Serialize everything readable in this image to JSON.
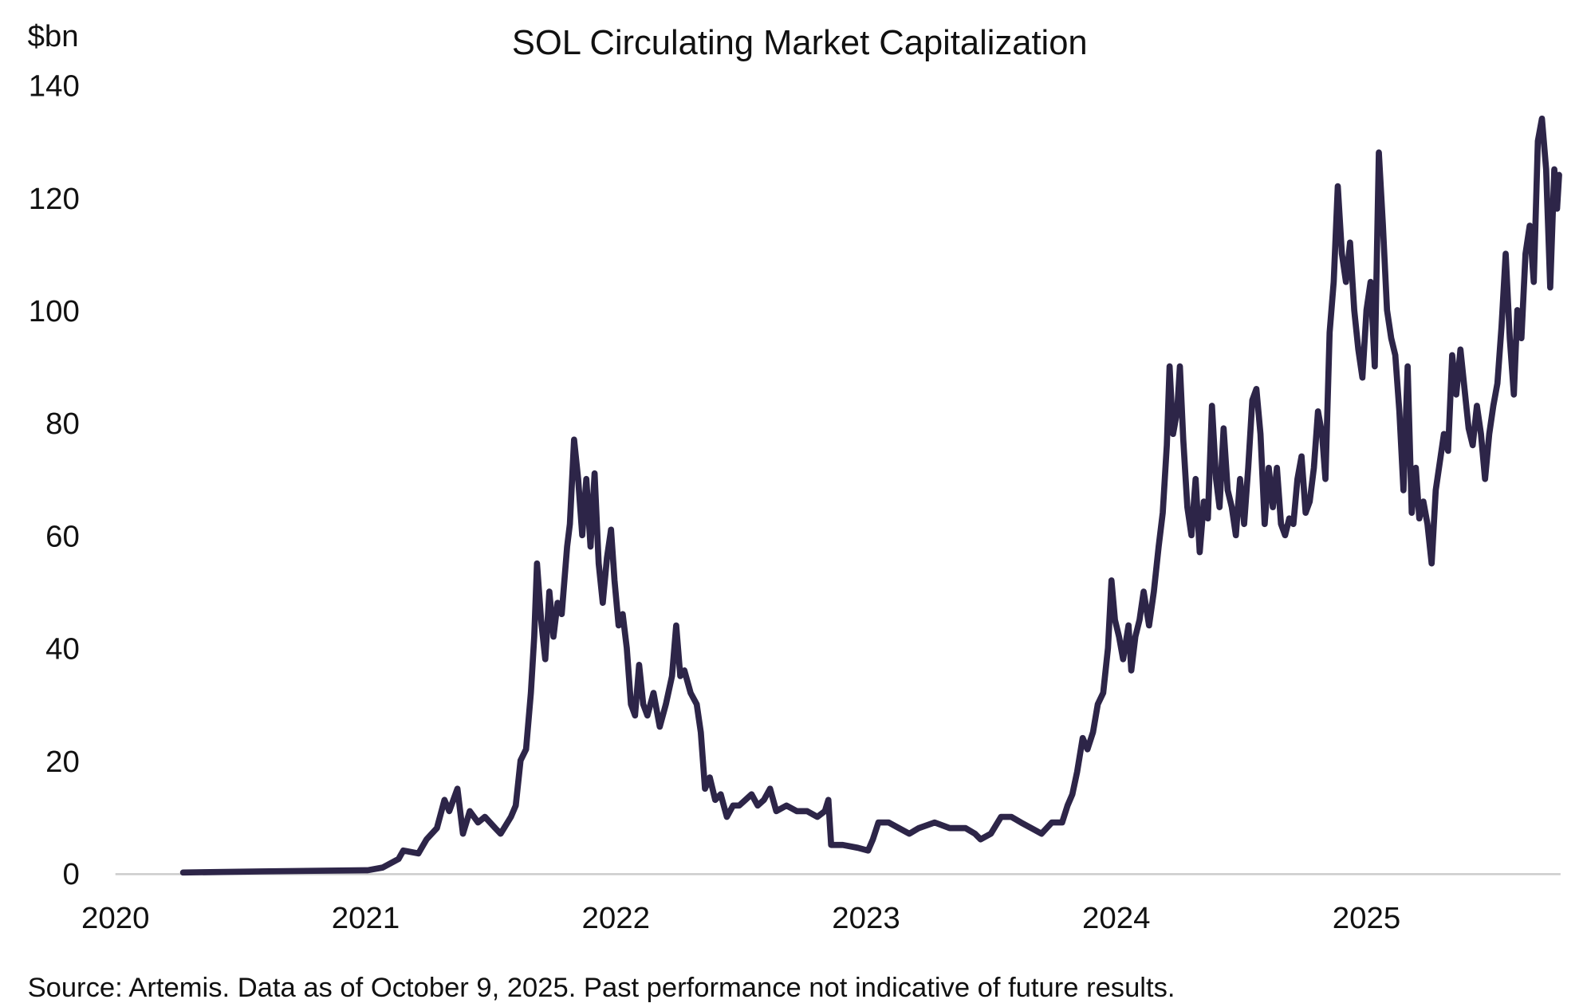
{
  "chart_data": {
    "type": "line",
    "title": "SOL Circulating Market Capitalization",
    "ylabel": "$bn",
    "xlabel": "",
    "ylim": [
      0,
      140
    ],
    "xlim": [
      "2020-01-01",
      "2025-10-09"
    ],
    "yticks": [
      "0",
      "20",
      "40",
      "60",
      "80",
      "100",
      "120",
      "140"
    ],
    "xticks": [
      "2020",
      "2021",
      "2022",
      "2023",
      "2024",
      "2025"
    ],
    "grid": false,
    "line_color": "#2d2548",
    "axis_color": "#cccccc",
    "source": "Source: Artemis. Data as of October 9, 2025. Past performance not indicative of future results.",
    "series": [
      {
        "points": [
          [
            "2020-04-09",
            0.1
          ],
          [
            "2020-08-01",
            0.3
          ],
          [
            "2020-12-31",
            0.5
          ],
          [
            "2021-01-04",
            0.5
          ],
          [
            "2021-01-26",
            1
          ],
          [
            "2021-02-18",
            2.5
          ],
          [
            "2021-02-25",
            4
          ],
          [
            "2021-03-19",
            3.5
          ],
          [
            "2021-03-31",
            6
          ],
          [
            "2021-04-15",
            8
          ],
          [
            "2021-04-26",
            13
          ],
          [
            "2021-05-03",
            11
          ],
          [
            "2021-05-15",
            15
          ],
          [
            "2021-05-23",
            7
          ],
          [
            "2021-06-02",
            11
          ],
          [
            "2021-06-14",
            9
          ],
          [
            "2021-06-24",
            10
          ],
          [
            "2021-07-09",
            8
          ],
          [
            "2021-07-17",
            7
          ],
          [
            "2021-08-01",
            10
          ],
          [
            "2021-08-08",
            12
          ],
          [
            "2021-08-15",
            20
          ],
          [
            "2021-08-23",
            22
          ],
          [
            "2021-08-30",
            32
          ],
          [
            "2021-09-04",
            42
          ],
          [
            "2021-09-08",
            55
          ],
          [
            "2021-09-14",
            45
          ],
          [
            "2021-09-20",
            38
          ],
          [
            "2021-09-26",
            50
          ],
          [
            "2021-10-02",
            42
          ],
          [
            "2021-10-08",
            48
          ],
          [
            "2021-10-14",
            46
          ],
          [
            "2021-10-22",
            58
          ],
          [
            "2021-10-26",
            62
          ],
          [
            "2021-11-01",
            77
          ],
          [
            "2021-11-07",
            70
          ],
          [
            "2021-11-13",
            60
          ],
          [
            "2021-11-19",
            70
          ],
          [
            "2021-11-25",
            58
          ],
          [
            "2021-12-01",
            71
          ],
          [
            "2021-12-07",
            55
          ],
          [
            "2021-12-13",
            48
          ],
          [
            "2021-12-19",
            56
          ],
          [
            "2021-12-25",
            61
          ],
          [
            "2021-12-30",
            52
          ],
          [
            "2022-01-05",
            44
          ],
          [
            "2022-01-11",
            46
          ],
          [
            "2022-01-17",
            40
          ],
          [
            "2022-01-23",
            30
          ],
          [
            "2022-01-29",
            28
          ],
          [
            "2022-02-04",
            37
          ],
          [
            "2022-02-10",
            30
          ],
          [
            "2022-02-16",
            28
          ],
          [
            "2022-02-25",
            32
          ],
          [
            "2022-03-06",
            26
          ],
          [
            "2022-03-15",
            30
          ],
          [
            "2022-03-24",
            35
          ],
          [
            "2022-03-30",
            44
          ],
          [
            "2022-04-05",
            35
          ],
          [
            "2022-04-11",
            36
          ],
          [
            "2022-04-20",
            32
          ],
          [
            "2022-04-29",
            30
          ],
          [
            "2022-05-05",
            25
          ],
          [
            "2022-05-11",
            15
          ],
          [
            "2022-05-18",
            17
          ],
          [
            "2022-05-26",
            13
          ],
          [
            "2022-06-03",
            14
          ],
          [
            "2022-06-12",
            10
          ],
          [
            "2022-06-21",
            12
          ],
          [
            "2022-06-30",
            12
          ],
          [
            "2022-07-09",
            13
          ],
          [
            "2022-07-18",
            14
          ],
          [
            "2022-07-27",
            12
          ],
          [
            "2022-08-05",
            13
          ],
          [
            "2022-08-14",
            15
          ],
          [
            "2022-08-23",
            11
          ],
          [
            "2022-09-07",
            12
          ],
          [
            "2022-09-22",
            11
          ],
          [
            "2022-10-07",
            11
          ],
          [
            "2022-10-22",
            10
          ],
          [
            "2022-11-02",
            11
          ],
          [
            "2022-11-07",
            13
          ],
          [
            "2022-11-11",
            5
          ],
          [
            "2022-11-28",
            5
          ],
          [
            "2022-12-20",
            4.5
          ],
          [
            "2023-01-04",
            4
          ],
          [
            "2023-01-11",
            6
          ],
          [
            "2023-01-19",
            9
          ],
          [
            "2023-02-03",
            9
          ],
          [
            "2023-02-18",
            8
          ],
          [
            "2023-03-05",
            7
          ],
          [
            "2023-03-19",
            8
          ],
          [
            "2023-04-11",
            9
          ],
          [
            "2023-05-03",
            8
          ],
          [
            "2023-05-26",
            8
          ],
          [
            "2023-06-09",
            7
          ],
          [
            "2023-06-17",
            6
          ],
          [
            "2023-07-02",
            7
          ],
          [
            "2023-07-17",
            10
          ],
          [
            "2023-08-01",
            10
          ],
          [
            "2023-08-15",
            9
          ],
          [
            "2023-08-30",
            8
          ],
          [
            "2023-09-14",
            7
          ],
          [
            "2023-09-29",
            9
          ],
          [
            "2023-10-14",
            9
          ],
          [
            "2023-10-22",
            12
          ],
          [
            "2023-10-29",
            14
          ],
          [
            "2023-11-05",
            18
          ],
          [
            "2023-11-13",
            24
          ],
          [
            "2023-11-20",
            22
          ],
          [
            "2023-11-28",
            25
          ],
          [
            "2023-12-05",
            30
          ],
          [
            "2023-12-13",
            32
          ],
          [
            "2023-12-20",
            40
          ],
          [
            "2023-12-25",
            52
          ],
          [
            "2023-12-30",
            45
          ],
          [
            "2024-01-05",
            42
          ],
          [
            "2024-01-11",
            38
          ],
          [
            "2024-01-19",
            44
          ],
          [
            "2024-01-23",
            36
          ],
          [
            "2024-01-29",
            42
          ],
          [
            "2024-02-04",
            45
          ],
          [
            "2024-02-10",
            50
          ],
          [
            "2024-02-18",
            44
          ],
          [
            "2024-02-25",
            50
          ],
          [
            "2024-03-03",
            58
          ],
          [
            "2024-03-09",
            64
          ],
          [
            "2024-03-15",
            76
          ],
          [
            "2024-03-19",
            90
          ],
          [
            "2024-03-24",
            78
          ],
          [
            "2024-03-30",
            82
          ],
          [
            "2024-04-03",
            90
          ],
          [
            "2024-04-08",
            77
          ],
          [
            "2024-04-14",
            65
          ],
          [
            "2024-04-20",
            60
          ],
          [
            "2024-04-26",
            70
          ],
          [
            "2024-05-02",
            57
          ],
          [
            "2024-05-08",
            66
          ],
          [
            "2024-05-14",
            63
          ],
          [
            "2024-05-20",
            83
          ],
          [
            "2024-05-26",
            70
          ],
          [
            "2024-05-31",
            65
          ],
          [
            "2024-06-06",
            79
          ],
          [
            "2024-06-12",
            68
          ],
          [
            "2024-06-18",
            65
          ],
          [
            "2024-06-24",
            60
          ],
          [
            "2024-06-30",
            70
          ],
          [
            "2024-07-06",
            62
          ],
          [
            "2024-07-12",
            72
          ],
          [
            "2024-07-18",
            84
          ],
          [
            "2024-07-24",
            86
          ],
          [
            "2024-07-30",
            78
          ],
          [
            "2024-08-05",
            62
          ],
          [
            "2024-08-11",
            72
          ],
          [
            "2024-08-17",
            65
          ],
          [
            "2024-08-23",
            72
          ],
          [
            "2024-08-29",
            62
          ],
          [
            "2024-09-04",
            60
          ],
          [
            "2024-09-10",
            63
          ],
          [
            "2024-09-16",
            62
          ],
          [
            "2024-09-22",
            70
          ],
          [
            "2024-09-28",
            74
          ],
          [
            "2024-10-04",
            64
          ],
          [
            "2024-10-10",
            66
          ],
          [
            "2024-10-16",
            72
          ],
          [
            "2024-10-22",
            82
          ],
          [
            "2024-10-28",
            78
          ],
          [
            "2024-11-02",
            70
          ],
          [
            "2024-11-08",
            96
          ],
          [
            "2024-11-14",
            105
          ],
          [
            "2024-11-20",
            122
          ],
          [
            "2024-11-26",
            110
          ],
          [
            "2024-12-02",
            105
          ],
          [
            "2024-12-08",
            112
          ],
          [
            "2024-12-14",
            100
          ],
          [
            "2024-12-20",
            93
          ],
          [
            "2024-12-26",
            88
          ],
          [
            "2025-01-01",
            100
          ],
          [
            "2025-01-07",
            105
          ],
          [
            "2025-01-13",
            90
          ],
          [
            "2025-01-19",
            128
          ],
          [
            "2025-01-25",
            115
          ],
          [
            "2025-01-31",
            100
          ],
          [
            "2025-02-06",
            95
          ],
          [
            "2025-02-12",
            92
          ],
          [
            "2025-02-18",
            82
          ],
          [
            "2025-02-24",
            68
          ],
          [
            "2025-03-02",
            90
          ],
          [
            "2025-03-08",
            64
          ],
          [
            "2025-03-14",
            72
          ],
          [
            "2025-03-19",
            63
          ],
          [
            "2025-03-25",
            66
          ],
          [
            "2025-03-31",
            62
          ],
          [
            "2025-04-06",
            55
          ],
          [
            "2025-04-12",
            68
          ],
          [
            "2025-04-18",
            73
          ],
          [
            "2025-04-24",
            78
          ],
          [
            "2025-04-30",
            75
          ],
          [
            "2025-05-06",
            92
          ],
          [
            "2025-05-12",
            85
          ],
          [
            "2025-05-18",
            93
          ],
          [
            "2025-05-24",
            86
          ],
          [
            "2025-05-30",
            79
          ],
          [
            "2025-06-05",
            76
          ],
          [
            "2025-06-11",
            83
          ],
          [
            "2025-06-17",
            78
          ],
          [
            "2025-06-23",
            70
          ],
          [
            "2025-06-29",
            78
          ],
          [
            "2025-07-05",
            83
          ],
          [
            "2025-07-11",
            87
          ],
          [
            "2025-07-17",
            97
          ],
          [
            "2025-07-23",
            110
          ],
          [
            "2025-07-29",
            95
          ],
          [
            "2025-08-04",
            85
          ],
          [
            "2025-08-09",
            100
          ],
          [
            "2025-08-15",
            95
          ],
          [
            "2025-08-21",
            110
          ],
          [
            "2025-08-27",
            115
          ],
          [
            "2025-09-02",
            105
          ],
          [
            "2025-09-08",
            130
          ],
          [
            "2025-09-14",
            134
          ],
          [
            "2025-09-20",
            125
          ],
          [
            "2025-09-26",
            104
          ],
          [
            "2025-10-02",
            125
          ],
          [
            "2025-10-06",
            118
          ],
          [
            "2025-10-09",
            124
          ]
        ]
      }
    ]
  }
}
